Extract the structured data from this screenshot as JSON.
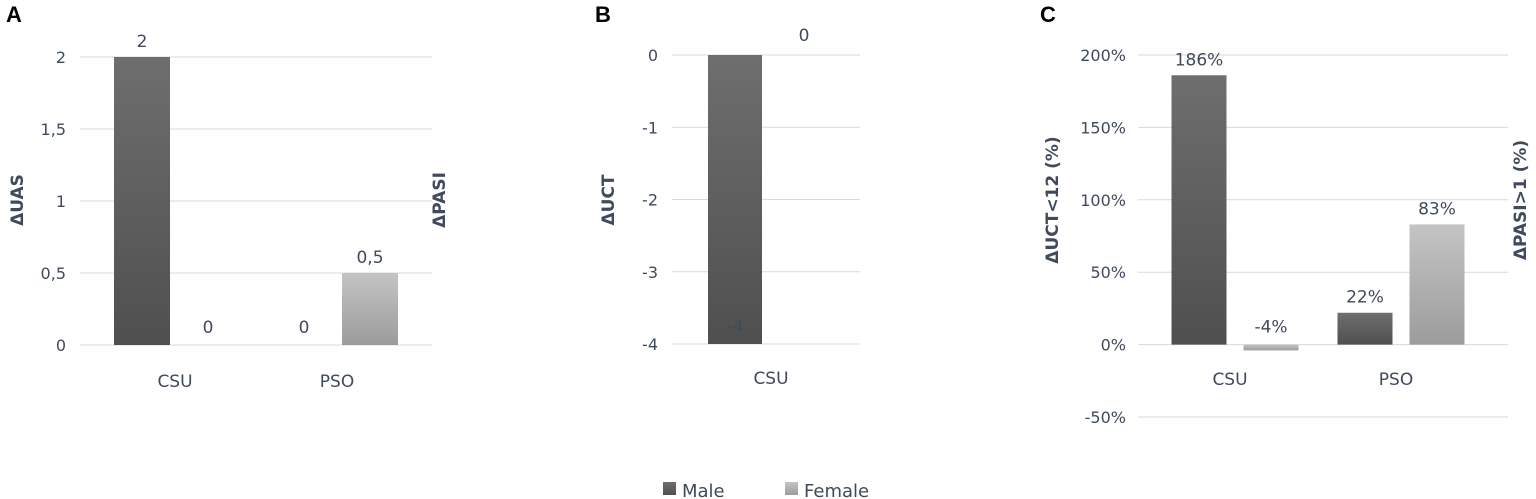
{
  "legend": [
    {
      "name": "Male",
      "color": "#555555"
    },
    {
      "name": "Female",
      "color": "#a9a9a9"
    }
  ],
  "chart_data": [
    {
      "panel": "A",
      "type": "bar",
      "categories": [
        "CSU",
        "PSO"
      ],
      "series": [
        {
          "name": "Male",
          "values": [
            2,
            0
          ],
          "labels": [
            "2",
            "0"
          ]
        },
        {
          "name": "Female",
          "values": [
            0,
            0.5
          ],
          "labels": [
            "0",
            "0,5"
          ]
        }
      ],
      "ylim": [
        0,
        2
      ],
      "yticks": [
        0,
        0.5,
        1,
        1.5,
        2
      ],
      "ytick_labels": [
        "0",
        "0,5",
        "1",
        "1,5",
        "2"
      ],
      "ylabel": "ΔUAS",
      "ylabel_right": "ΔPASI",
      "grid": true
    },
    {
      "panel": "B",
      "type": "bar",
      "categories": [
        "CSU"
      ],
      "series": [
        {
          "name": "Male",
          "values": [
            -4
          ],
          "labels": [
            "-4"
          ]
        },
        {
          "name": "Female",
          "values": [
            0
          ],
          "labels": [
            "0"
          ]
        }
      ],
      "ylim": [
        -4,
        0
      ],
      "yticks": [
        0,
        -1,
        -2,
        -3,
        -4
      ],
      "ytick_labels": [
        "0",
        "-1",
        "-2",
        "-3",
        "-4"
      ],
      "ylabel": "ΔUCT",
      "grid": true
    },
    {
      "panel": "C",
      "type": "bar",
      "categories": [
        "CSU",
        "PSO"
      ],
      "series": [
        {
          "name": "Male",
          "values": [
            186,
            22
          ],
          "labels": [
            "186%",
            "22%"
          ]
        },
        {
          "name": "Female",
          "values": [
            -4,
            83
          ],
          "labels": [
            "-4%",
            "83%"
          ]
        }
      ],
      "ylim": [
        -50,
        200
      ],
      "yticks": [
        200,
        150,
        100,
        50,
        0,
        -50
      ],
      "ytick_labels": [
        "200%",
        "150%",
        "100%",
        "50%",
        "0%",
        "-50%"
      ],
      "ylabel": "ΔUCT<12 (%)",
      "ylabel_right": "ΔPASI>1 (%)",
      "grid": true
    }
  ]
}
